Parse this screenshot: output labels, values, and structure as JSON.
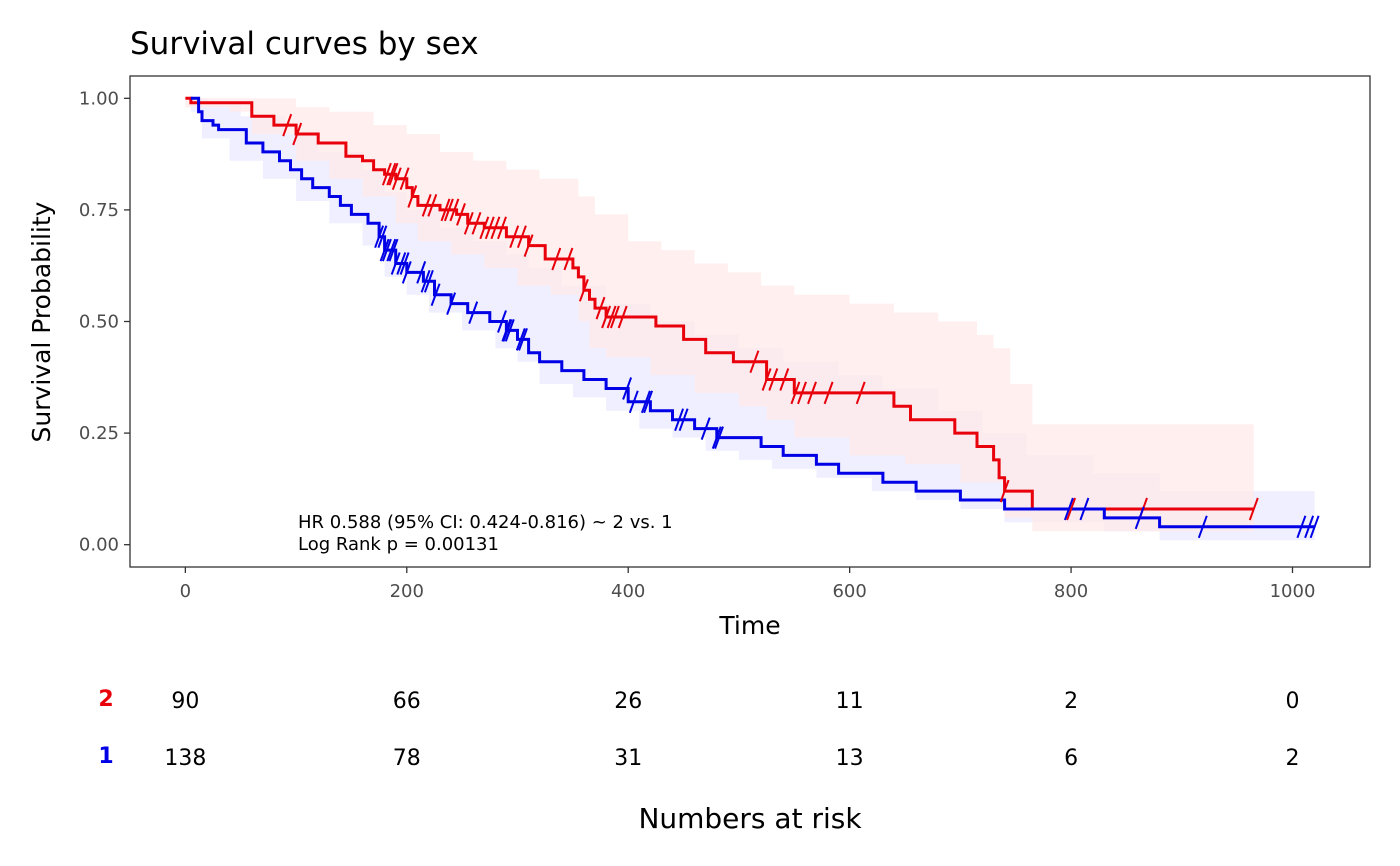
{
  "chart_data": {
    "type": "line",
    "title": "Survival curves by sex",
    "xlabel": "Time",
    "ylabel": "Survival Probability",
    "xlim": [
      -50,
      1070
    ],
    "ylim": [
      -0.05,
      1.05
    ],
    "x_ticks": [
      0,
      200,
      400,
      600,
      800,
      1000
    ],
    "y_ticks": [
      0.0,
      0.25,
      0.5,
      0.75,
      1.0
    ],
    "y_tick_labels": [
      "0.00",
      "0.25",
      "0.50",
      "0.75",
      "1.00"
    ],
    "grid": false,
    "annotation": [
      "HR 0.588 (95% CI: 0.424-0.816) ~ 2 vs. 1",
      "Log Rank p = 0.00131"
    ],
    "series": [
      {
        "label": "2",
        "color": "#e8000b",
        "band_color": "#ffeaea",
        "steps": [
          [
            0,
            1.0
          ],
          [
            5,
            0.99
          ],
          [
            60,
            0.96
          ],
          [
            80,
            0.94
          ],
          [
            100,
            0.92
          ],
          [
            120,
            0.9
          ],
          [
            145,
            0.87
          ],
          [
            160,
            0.86
          ],
          [
            170,
            0.84
          ],
          [
            180,
            0.83
          ],
          [
            190,
            0.82
          ],
          [
            200,
            0.8
          ],
          [
            205,
            0.78
          ],
          [
            210,
            0.76
          ],
          [
            230,
            0.75
          ],
          [
            245,
            0.74
          ],
          [
            255,
            0.72
          ],
          [
            270,
            0.71
          ],
          [
            290,
            0.69
          ],
          [
            310,
            0.67
          ],
          [
            325,
            0.64
          ],
          [
            350,
            0.62
          ],
          [
            355,
            0.6
          ],
          [
            360,
            0.57
          ],
          [
            365,
            0.55
          ],
          [
            370,
            0.53
          ],
          [
            380,
            0.51
          ],
          [
            425,
            0.49
          ],
          [
            450,
            0.46
          ],
          [
            470,
            0.43
          ],
          [
            495,
            0.41
          ],
          [
            525,
            0.37
          ],
          [
            550,
            0.34
          ],
          [
            640,
            0.31
          ],
          [
            655,
            0.28
          ],
          [
            695,
            0.25
          ],
          [
            715,
            0.22
          ],
          [
            730,
            0.19
          ],
          [
            735,
            0.15
          ],
          [
            740,
            0.12
          ],
          [
            765,
            0.08
          ],
          [
            965,
            0.08
          ]
        ],
        "upper": [
          [
            0,
            1.0
          ],
          [
            60,
            1.0
          ],
          [
            100,
            0.98
          ],
          [
            130,
            0.97
          ],
          [
            170,
            0.94
          ],
          [
            200,
            0.92
          ],
          [
            230,
            0.88
          ],
          [
            260,
            0.86
          ],
          [
            290,
            0.84
          ],
          [
            320,
            0.82
          ],
          [
            355,
            0.78
          ],
          [
            370,
            0.74
          ],
          [
            400,
            0.68
          ],
          [
            430,
            0.66
          ],
          [
            460,
            0.63
          ],
          [
            490,
            0.61
          ],
          [
            520,
            0.58
          ],
          [
            550,
            0.56
          ],
          [
            600,
            0.54
          ],
          [
            640,
            0.52
          ],
          [
            680,
            0.5
          ],
          [
            715,
            0.47
          ],
          [
            730,
            0.44
          ],
          [
            745,
            0.36
          ],
          [
            765,
            0.27
          ],
          [
            965,
            0.27
          ]
        ],
        "lower": [
          [
            0,
            0.98
          ],
          [
            40,
            0.97
          ],
          [
            60,
            0.92
          ],
          [
            100,
            0.86
          ],
          [
            130,
            0.82
          ],
          [
            160,
            0.78
          ],
          [
            190,
            0.72
          ],
          [
            210,
            0.68
          ],
          [
            240,
            0.65
          ],
          [
            270,
            0.62
          ],
          [
            300,
            0.58
          ],
          [
            330,
            0.56
          ],
          [
            355,
            0.5
          ],
          [
            365,
            0.44
          ],
          [
            380,
            0.42
          ],
          [
            420,
            0.38
          ],
          [
            460,
            0.34
          ],
          [
            500,
            0.31
          ],
          [
            525,
            0.28
          ],
          [
            550,
            0.24
          ],
          [
            600,
            0.2
          ],
          [
            650,
            0.18
          ],
          [
            700,
            0.14
          ],
          [
            740,
            0.06
          ],
          [
            765,
            0.03
          ],
          [
            965,
            0.03
          ]
        ],
        "censor_x": [
          92,
          101,
          182,
          186,
          188,
          191,
          198,
          205,
          218,
          223,
          235,
          238,
          243,
          249,
          256,
          263,
          270,
          275,
          280,
          286,
          297,
          304,
          310,
          335,
          346,
          360,
          375,
          380,
          385,
          388,
          395,
          514,
          525,
          531,
          541,
          551,
          557,
          566,
          581,
          610,
          740,
          800,
          865,
          965
        ]
      },
      {
        "label": "1",
        "color": "#0000e6",
        "band_color": "#eaeaff",
        "steps": [
          [
            5,
            1.0
          ],
          [
            12,
            0.97
          ],
          [
            15,
            0.95
          ],
          [
            25,
            0.94
          ],
          [
            30,
            0.93
          ],
          [
            55,
            0.9
          ],
          [
            70,
            0.88
          ],
          [
            85,
            0.86
          ],
          [
            95,
            0.84
          ],
          [
            105,
            0.82
          ],
          [
            115,
            0.8
          ],
          [
            130,
            0.78
          ],
          [
            140,
            0.76
          ],
          [
            150,
            0.74
          ],
          [
            165,
            0.72
          ],
          [
            175,
            0.69
          ],
          [
            180,
            0.66
          ],
          [
            190,
            0.63
          ],
          [
            200,
            0.61
          ],
          [
            215,
            0.59
          ],
          [
            225,
            0.56
          ],
          [
            240,
            0.54
          ],
          [
            255,
            0.52
          ],
          [
            275,
            0.5
          ],
          [
            290,
            0.48
          ],
          [
            300,
            0.46
          ],
          [
            310,
            0.43
          ],
          [
            320,
            0.41
          ],
          [
            340,
            0.39
          ],
          [
            360,
            0.37
          ],
          [
            380,
            0.35
          ],
          [
            400,
            0.32
          ],
          [
            420,
            0.3
          ],
          [
            440,
            0.28
          ],
          [
            460,
            0.26
          ],
          [
            480,
            0.24
          ],
          [
            520,
            0.22
          ],
          [
            540,
            0.2
          ],
          [
            570,
            0.18
          ],
          [
            590,
            0.16
          ],
          [
            630,
            0.14
          ],
          [
            660,
            0.12
          ],
          [
            700,
            0.1
          ],
          [
            740,
            0.08
          ],
          [
            830,
            0.06
          ],
          [
            880,
            0.04
          ],
          [
            1020,
            0.04
          ]
        ],
        "upper": [
          [
            5,
            1.0
          ],
          [
            20,
            0.99
          ],
          [
            50,
            0.96
          ],
          [
            90,
            0.92
          ],
          [
            120,
            0.88
          ],
          [
            160,
            0.84
          ],
          [
            180,
            0.79
          ],
          [
            200,
            0.75
          ],
          [
            230,
            0.71
          ],
          [
            260,
            0.68
          ],
          [
            290,
            0.65
          ],
          [
            310,
            0.62
          ],
          [
            340,
            0.58
          ],
          [
            380,
            0.54
          ],
          [
            420,
            0.5
          ],
          [
            460,
            0.47
          ],
          [
            500,
            0.44
          ],
          [
            540,
            0.41
          ],
          [
            590,
            0.38
          ],
          [
            630,
            0.35
          ],
          [
            680,
            0.3
          ],
          [
            720,
            0.25
          ],
          [
            760,
            0.2
          ],
          [
            820,
            0.16
          ],
          [
            880,
            0.12
          ],
          [
            1020,
            0.12
          ]
        ],
        "lower": [
          [
            5,
            0.97
          ],
          [
            15,
            0.91
          ],
          [
            40,
            0.86
          ],
          [
            70,
            0.82
          ],
          [
            100,
            0.77
          ],
          [
            130,
            0.72
          ],
          [
            160,
            0.67
          ],
          [
            180,
            0.6
          ],
          [
            200,
            0.56
          ],
          [
            220,
            0.52
          ],
          [
            250,
            0.48
          ],
          [
            280,
            0.44
          ],
          [
            300,
            0.41
          ],
          [
            320,
            0.36
          ],
          [
            350,
            0.33
          ],
          [
            380,
            0.3
          ],
          [
            410,
            0.26
          ],
          [
            440,
            0.24
          ],
          [
            470,
            0.21
          ],
          [
            500,
            0.19
          ],
          [
            530,
            0.17
          ],
          [
            570,
            0.15
          ],
          [
            620,
            0.12
          ],
          [
            660,
            0.1
          ],
          [
            700,
            0.08
          ],
          [
            740,
            0.05
          ],
          [
            830,
            0.03
          ],
          [
            880,
            0.01
          ],
          [
            1020,
            0.01
          ]
        ],
        "censor_x": [
          175,
          178,
          180,
          182,
          186,
          188,
          190,
          195,
          198,
          200,
          213,
          217,
          220,
          226,
          240,
          260,
          286,
          290,
          291,
          293,
          303,
          305,
          399,
          405,
          416,
          418,
          446,
          450,
          470,
          480,
          482,
          798,
          812,
          862,
          919,
          1008,
          1015,
          1020
        ]
      }
    ],
    "risk_table": {
      "title": "Numbers at risk",
      "times": [
        0,
        200,
        400,
        600,
        800,
        1000
      ],
      "rows": [
        {
          "label": "2",
          "color": "#e8000b",
          "values": [
            "90",
            "66",
            "26",
            "11",
            "2",
            "0"
          ]
        },
        {
          "label": "1",
          "color": "#0000e6",
          "values": [
            "138",
            "78",
            "31",
            "13",
            "6",
            "2"
          ]
        }
      ]
    }
  }
}
